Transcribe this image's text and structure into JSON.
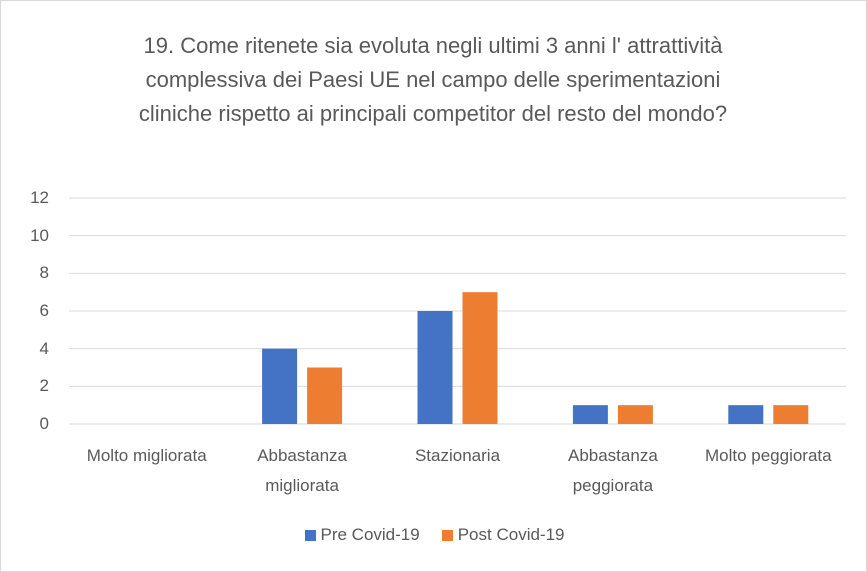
{
  "chart_data": {
    "type": "bar",
    "title": "19. Come ritenete sia evoluta negli ultimi 3 anni l' attrattività complessiva dei Paesi UE nel campo delle sperimentazioni cliniche rispetto ai principali competitor del resto del mondo?",
    "categories": [
      "Molto migliorata",
      "Abbastanza migliorata",
      "Stazionaria",
      "Abbastanza peggiorata",
      "Molto peggiorata"
    ],
    "series": [
      {
        "name": "Pre Covid-19",
        "color": "#4472c4",
        "values": [
          0,
          4,
          6,
          1,
          1
        ]
      },
      {
        "name": "Post Covid-19",
        "color": "#ed7d31",
        "values": [
          0,
          3,
          7,
          1,
          1
        ]
      }
    ],
    "ylim": [
      0,
      12
    ],
    "yticks": [
      0,
      2,
      4,
      6,
      8,
      10,
      12
    ],
    "grid": true,
    "legend": "bottom"
  }
}
